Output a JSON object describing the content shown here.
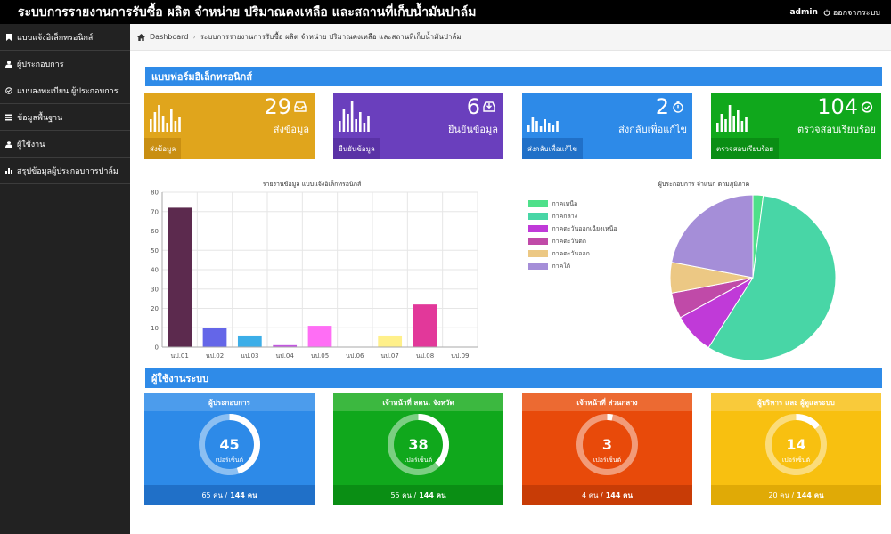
{
  "header": {
    "title": "ระบบการรายงานการรับซื้อ ผลิต จำหน่าย ปริมาณคงเหลือ และสถานที่เก็บน้ำมันปาล์ม",
    "user": "admin",
    "logout_label": "ออกจากระบบ"
  },
  "sidebar": {
    "items": [
      {
        "label": "แบบแจ้งอิเล็กทรอนิกส์",
        "icon": "bookmark-icon"
      },
      {
        "label": "ผู้ประกอบการ",
        "icon": "user-icon"
      },
      {
        "label": "แบบลงทะเบียน ผู้ประกอบการ",
        "icon": "check-circle-icon"
      },
      {
        "label": "ข้อมูลพื้นฐาน",
        "icon": "list-icon"
      },
      {
        "label": "ผู้ใช้งาน",
        "icon": "user-icon"
      },
      {
        "label": "สรุปข้อมูลผู้ประกอบการปาล์ม",
        "icon": "chart-icon"
      }
    ]
  },
  "breadcrumb": {
    "home": "Dashboard",
    "current": "ระบบการรายงานการรับซื้อ ผลิต จำหน่าย ปริมาณคงเหลือ และสถานที่เก็บน้ำมันปาล์ม"
  },
  "section1": {
    "title": "แบบฟอร์มอิเล็กทรอนิกส์"
  },
  "stats": [
    {
      "value": "29",
      "label": "ส่งข้อมูล",
      "footer": "ส่งข้อมูล",
      "icon": "inbox-icon",
      "color": "#e0a51c",
      "foot_color": "#c98f12"
    },
    {
      "value": "6",
      "label": "ยืนยันข้อมูล",
      "footer": "ยืนยันข้อมูล",
      "icon": "download-icon",
      "color": "#6a3fbd",
      "foot_color": "#5a32a6"
    },
    {
      "value": "2",
      "label": "ส่งกลับเพื่อแก้ไข",
      "footer": "ส่งกลับเพื่อแก้ไข",
      "icon": "timer-icon",
      "color": "#2d8ae8",
      "foot_color": "#2070c8"
    },
    {
      "value": "104",
      "label": "ตรวจสอบเรียบร้อย",
      "footer": "ตรวจสอบเรียบร้อย",
      "icon": "check-circle-icon",
      "color": "#10a81c",
      "foot_color": "#0a8e14"
    }
  ],
  "bar_chart_title": "รายงานข้อมูล แบบแจ้งอิเล็กทรอนิกส์",
  "pie_chart_title": "ผู้ประกอบการ จำแนก ตามภูมิภาค",
  "chart_data": [
    {
      "type": "bar",
      "title": "รายงานข้อมูล แบบแจ้งอิเล็กทรอนิกส์",
      "categories": [
        "นป.01",
        "นป.02",
        "นป.03",
        "นป.04",
        "นป.05",
        "นป.06",
        "นป.07",
        "นป.08",
        "นป.09"
      ],
      "values": [
        72,
        10,
        6,
        1,
        11,
        0,
        6,
        22,
        0
      ],
      "colors": [
        "#5c2a4e",
        "#6466e8",
        "#3caee8",
        "#c257e0",
        "#ff6ef5",
        "#cccccc",
        "#fff08a",
        "#e2389a",
        "#cccccc"
      ],
      "yticks": [
        "0",
        "10",
        "20",
        "30",
        "40",
        "50",
        "60",
        "70",
        "80"
      ],
      "ylim": [
        0,
        80
      ],
      "grid": true
    },
    {
      "type": "pie",
      "title": "ผู้ประกอบการ จำแนก ตามภูมิภาค",
      "legend_position": "left",
      "slices": [
        {
          "label": "ภาคเหนือ",
          "value": 2,
          "color": "#4ee08a"
        },
        {
          "label": "ภาคกลาง",
          "value": 57,
          "color": "#48d6a6"
        },
        {
          "label": "ภาคตะวันออกเฉียงเหนือ",
          "value": 8,
          "color": "#c03ad8"
        },
        {
          "label": "ภาคตะวันตก",
          "value": 5,
          "color": "#c04aa8"
        },
        {
          "label": "ภาคตะวันออก",
          "value": 6,
          "color": "#ecc884"
        },
        {
          "label": "ภาคใต้",
          "value": 22,
          "color": "#a58ed8"
        }
      ]
    }
  ],
  "section2": {
    "title": "ผู้ใช้งานระบบ"
  },
  "user_cards": [
    {
      "title": "ผู้ประกอบการ",
      "value": "45",
      "unit": "เปอร์เซ็นต์",
      "fraction": 0.45,
      "count": "65 คน /",
      "total": "144 คน",
      "color": "#2d8ae8",
      "head_color": "#4c9cec",
      "foot_color": "#2070c8"
    },
    {
      "title": "เจ้าหน้าที่ สคน. จังหวัด",
      "value": "38",
      "unit": "เปอร์เซ็นต์",
      "fraction": 0.38,
      "count": "55 คน /",
      "total": "144 คน",
      "color": "#10a81c",
      "head_color": "#3cb840",
      "foot_color": "#0a8e14"
    },
    {
      "title": "เจ้าหน้าที่ ส่วนกลาง",
      "value": "3",
      "unit": "เปอร์เซ็นต์",
      "fraction": 0.03,
      "count": "4 คน /",
      "total": "144 คน",
      "color": "#e84a0a",
      "head_color": "#ec6a32",
      "foot_color": "#c83c06"
    },
    {
      "title": "ผู้บริหาร และ ผู้ดูแลระบบ",
      "value": "14",
      "unit": "เปอร์เซ็นต์",
      "fraction": 0.14,
      "count": "20 คน /",
      "total": "144 คน",
      "color": "#f8c010",
      "head_color": "#f9ca3a",
      "foot_color": "#e0aa06"
    }
  ]
}
